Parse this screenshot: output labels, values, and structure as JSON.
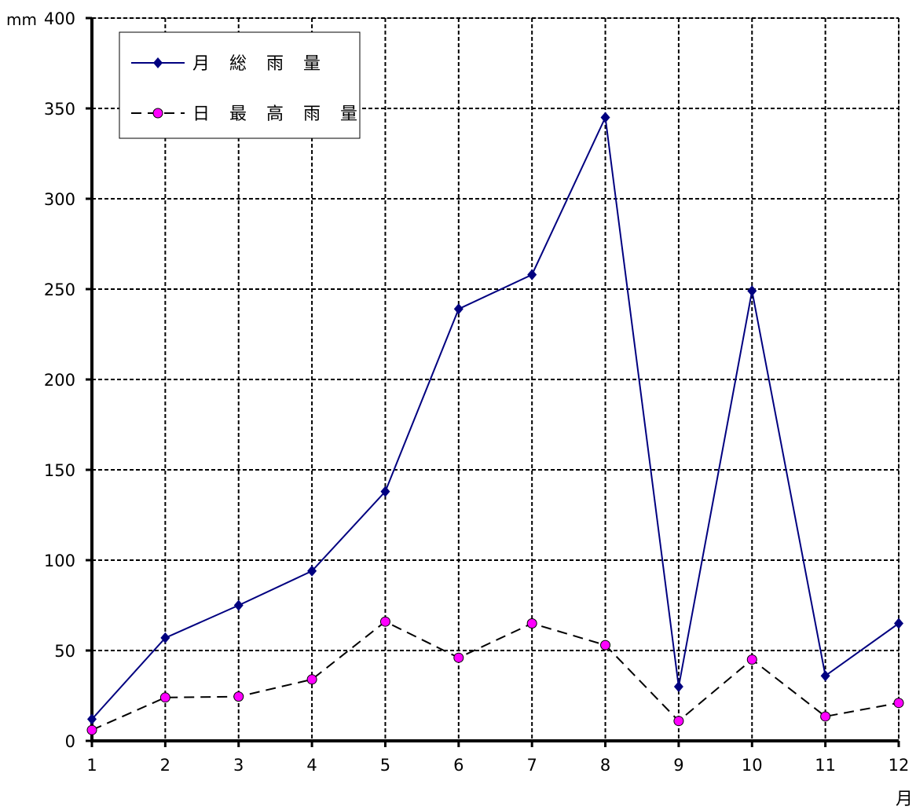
{
  "chart_data": {
    "type": "line",
    "y_unit": "mm",
    "x_unit": "月",
    "categories": [
      "1",
      "2",
      "3",
      "4",
      "5",
      "6",
      "7",
      "8",
      "9",
      "10",
      "11",
      "12"
    ],
    "ylim": [
      0,
      400
    ],
    "yticks": [
      0,
      50,
      100,
      150,
      200,
      250,
      300,
      350,
      400
    ],
    "grid": true,
    "legend_position": "top-left",
    "series": [
      {
        "name": "月 総 雨 量",
        "color": "#000080",
        "line_style": "solid",
        "marker": "diamond",
        "values": [
          12,
          57,
          75,
          94,
          138,
          239,
          258,
          345,
          30,
          249,
          36,
          65
        ]
      },
      {
        "name": "日 最 高 雨 量",
        "color": "#000000",
        "marker_color": "#ff00ff",
        "line_style": "dashed",
        "marker": "circle",
        "values": [
          6,
          24,
          24.5,
          34,
          66,
          46,
          65,
          53,
          11,
          45,
          13.5,
          21
        ]
      }
    ]
  }
}
